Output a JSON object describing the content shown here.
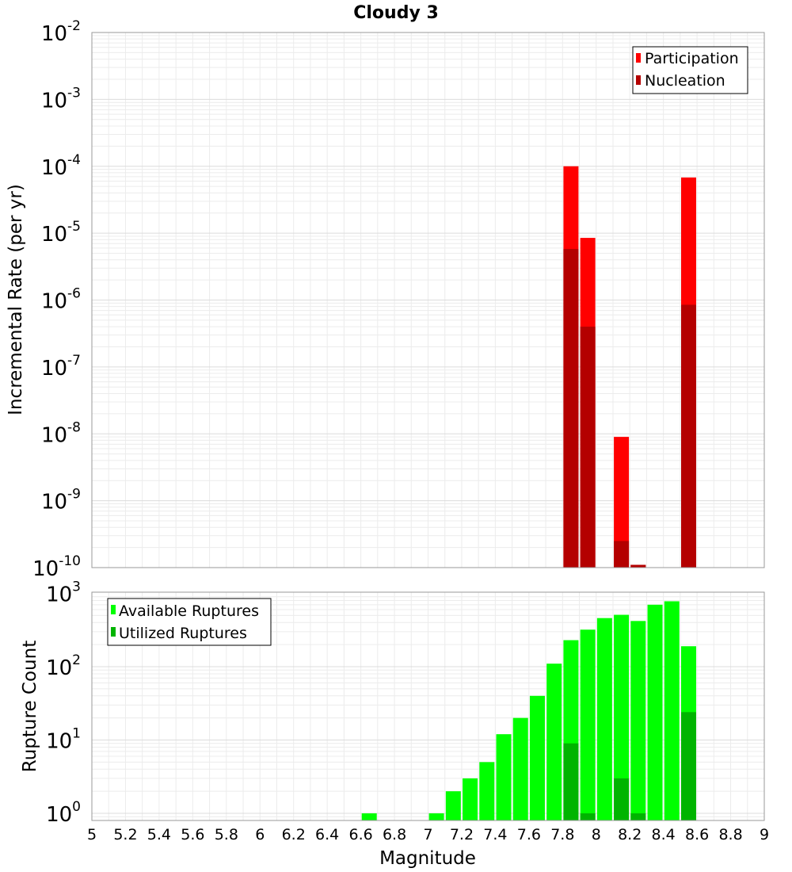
{
  "chart_data": [
    {
      "type": "bar",
      "title": "Cloudy 3",
      "xlabel": "",
      "ylabel": "Incremental Rate (per yr)",
      "yscale": "log",
      "ylim": [
        1e-10,
        0.01
      ],
      "xlim": [
        5,
        9
      ],
      "y_ticks": [
        {
          "base": "10",
          "exp": "-10"
        },
        {
          "base": "10",
          "exp": "-9"
        },
        {
          "base": "10",
          "exp": "-8"
        },
        {
          "base": "10",
          "exp": "-7"
        },
        {
          "base": "10",
          "exp": "-6"
        },
        {
          "base": "10",
          "exp": "-5"
        },
        {
          "base": "10",
          "exp": "-4"
        },
        {
          "base": "10",
          "exp": "-3"
        },
        {
          "base": "10",
          "exp": "-2"
        }
      ],
      "grid": true,
      "legend_position": "top-right",
      "series": [
        {
          "name": "Participation",
          "color": "#ff0000",
          "x": [
            7.85,
            7.95,
            8.15,
            8.25,
            8.55
          ],
          "values": [
            0.0001,
            8.5e-06,
            9e-09,
            1.1e-10,
            6.8e-05
          ]
        },
        {
          "name": "Nucleation",
          "color": "#b40000",
          "x": [
            7.85,
            7.95,
            8.15,
            8.25,
            8.55
          ],
          "values": [
            5.8e-06,
            4e-07,
            2.5e-10,
            1.1e-10,
            8.5e-07
          ]
        }
      ]
    },
    {
      "type": "bar",
      "xlabel": "Magnitude",
      "ylabel": "Rupture Count",
      "yscale": "log",
      "ylim": [
        0.8,
        1000
      ],
      "xlim": [
        5,
        9
      ],
      "y_ticks": [
        {
          "base": "10",
          "exp": "0",
          "value": 1
        },
        {
          "base": "10",
          "exp": "1",
          "value": 10
        },
        {
          "base": "10",
          "exp": "2",
          "value": 100
        },
        {
          "base": "10",
          "exp": "3",
          "value": 1000
        }
      ],
      "x_ticks": [
        "5",
        "5.2",
        "5.4",
        "5.6",
        "5.8",
        "6",
        "6.2",
        "6.4",
        "6.6",
        "6.8",
        "7",
        "7.2",
        "7.4",
        "7.6",
        "7.8",
        "8",
        "8.2",
        "8.4",
        "8.6",
        "8.8",
        "9"
      ],
      "grid": true,
      "legend_position": "top-left",
      "series": [
        {
          "name": "Available Ruptures",
          "color": "#00ff00",
          "x": [
            6.65,
            7.05,
            7.15,
            7.25,
            7.35,
            7.45,
            7.55,
            7.65,
            7.75,
            7.85,
            7.95,
            8.05,
            8.15,
            8.25,
            8.35,
            8.45,
            8.55
          ],
          "values": [
            1,
            1,
            2,
            3,
            5,
            12,
            20,
            40,
            110,
            230,
            320,
            460,
            510,
            420,
            700,
            780,
            190
          ]
        },
        {
          "name": "Utilized Ruptures",
          "color": "#00b400",
          "x": [
            7.85,
            7.95,
            8.15,
            8.25,
            8.55
          ],
          "values": [
            9,
            1,
            3,
            1,
            24
          ]
        }
      ]
    }
  ]
}
